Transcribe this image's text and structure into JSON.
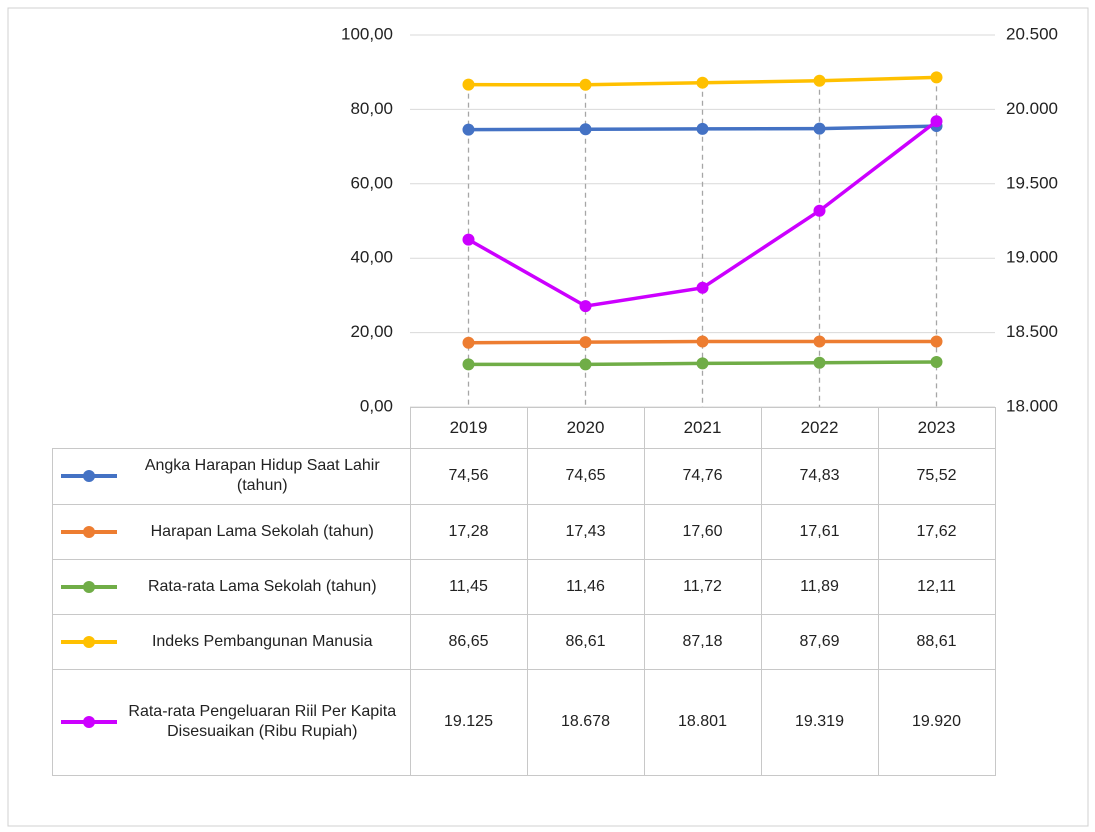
{
  "chart_data": {
    "type": "line",
    "categories": [
      "2019",
      "2020",
      "2021",
      "2022",
      "2023"
    ],
    "series": [
      {
        "name": "Angka Harapan Hidup Saat Lahir (tahun)",
        "color": "#4472c4",
        "values": [
          74.56,
          74.65,
          74.76,
          74.83,
          75.52
        ],
        "value_labels": [
          "74,56",
          "74,65",
          "74,76",
          "74,83",
          "75,52"
        ]
      },
      {
        "name": "Harapan Lama Sekolah (tahun)",
        "color": "#ed7d31",
        "values": [
          17.28,
          17.43,
          17.6,
          17.61,
          17.62
        ],
        "value_labels": [
          "17,28",
          "17,43",
          "17,60",
          "17,61",
          "17,62"
        ]
      },
      {
        "name": "Rata-rata Lama Sekolah (tahun)",
        "color": "#70ad47",
        "values": [
          11.45,
          11.46,
          11.72,
          11.89,
          12.11
        ],
        "value_labels": [
          "11,45",
          "11,46",
          "11,72",
          "11,89",
          "12,11"
        ]
      },
      {
        "name": "Indeks Pembangunan Manusia",
        "color": "#ffc000",
        "values": [
          86.65,
          86.61,
          87.18,
          87.69,
          88.61
        ],
        "value_labels": [
          "86,65",
          "86,61",
          "87,18",
          "87,69",
          "88,61"
        ]
      },
      {
        "name": "Rata-rata Pengeluaran Riil Per Kapita Disesuaikan (Ribu Rupiah)",
        "color": "#cc00ff",
        "axis": "y2",
        "values": [
          19125,
          18678,
          18801,
          19319,
          19920
        ],
        "value_labels": [
          "19.125",
          "18.678",
          "18.801",
          "19.319",
          "19.920"
        ]
      }
    ],
    "ylim": [
      0,
      100
    ],
    "yticks": [
      {
        "value": 0,
        "label": "0,00"
      },
      {
        "value": 20,
        "label": "20,00"
      },
      {
        "value": 40,
        "label": "40,00"
      },
      {
        "value": 60,
        "label": "60,00"
      },
      {
        "value": 80,
        "label": "80,00"
      },
      {
        "value": 100,
        "label": "100,00"
      }
    ],
    "y2lim": [
      18000,
      20500
    ],
    "y2ticks": [
      {
        "value": 18000,
        "label": "18.000"
      },
      {
        "value": 18500,
        "label": "18.500"
      },
      {
        "value": 19000,
        "label": "19.000"
      },
      {
        "value": 19500,
        "label": "19.500"
      },
      {
        "value": 20000,
        "label": "20.000"
      },
      {
        "value": 20500,
        "label": "20.500"
      }
    ],
    "grid": true
  }
}
